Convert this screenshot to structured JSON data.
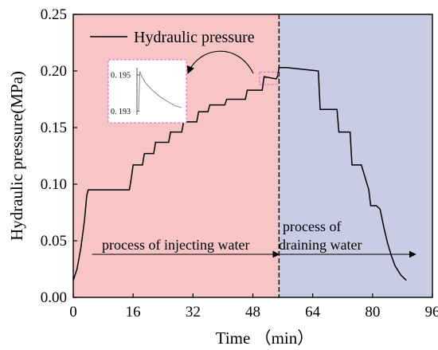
{
  "chart_data": {
    "type": "line",
    "xlabel": "Time （min）",
    "ylabel": "Hydraulic pressure(MPa)",
    "xlim": [
      0,
      96
    ],
    "ylim": [
      0,
      0.25
    ],
    "xticks": [
      0,
      16,
      32,
      48,
      64,
      80,
      96
    ],
    "yticks": [
      0.0,
      0.05,
      0.1,
      0.15,
      0.2,
      0.25
    ],
    "xtick_labels": [
      "0",
      "16",
      "32",
      "48",
      "64",
      "80",
      "96"
    ],
    "ytick_labels": [
      "0.00",
      "0.05",
      "0.10",
      "0.15",
      "0.20",
      "0.25"
    ],
    "divider_x": 55,
    "legend": {
      "label": "Hydraulic pressure",
      "position": "top-left"
    },
    "regions": [
      {
        "x": [
          0,
          55
        ],
        "color": "#f7c5c5"
      },
      {
        "x": [
          55,
          96
        ],
        "color": "#c8cde5"
      }
    ],
    "series": [
      {
        "name": "Hydraulic pressure",
        "color": "#000000",
        "x": [
          0,
          1,
          2,
          3,
          3.6,
          4,
          15,
          15.5,
          16,
          18.5,
          19,
          21.5,
          22,
          25.5,
          26,
          29,
          29.5,
          33,
          33.5,
          36,
          36.5,
          40.5,
          41,
          46,
          46.5,
          50.5,
          51,
          54.2,
          54.6,
          55,
          57,
          65.5,
          66,
          68,
          68.5,
          70.5,
          71,
          74,
          74.5,
          76.5,
          77,
          79,
          79.5,
          81,
          82,
          83,
          84,
          85,
          86,
          87.5,
          89
        ],
        "y": [
          0.015,
          0.025,
          0.043,
          0.068,
          0.09,
          0.095,
          0.095,
          0.105,
          0.117,
          0.117,
          0.127,
          0.127,
          0.137,
          0.137,
          0.146,
          0.146,
          0.155,
          0.155,
          0.164,
          0.164,
          0.17,
          0.17,
          0.175,
          0.175,
          0.183,
          0.183,
          0.195,
          0.193,
          0.195,
          0.203,
          0.203,
          0.2,
          0.166,
          0.166,
          0.166,
          0.166,
          0.146,
          0.146,
          0.117,
          0.117,
          0.117,
          0.095,
          0.081,
          0.081,
          0.078,
          0.062,
          0.048,
          0.037,
          0.028,
          0.02,
          0.015
        ]
      }
    ],
    "inset": {
      "yticks": [
        0.195,
        0.193
      ],
      "ytick_labels": [
        "0. 195",
        "0. 193"
      ],
      "curve_x": [
        0,
        0.03,
        0.08,
        0.15,
        0.3,
        0.5,
        0.7,
        0.85,
        1
      ],
      "curve_y": [
        0.193,
        0.1952,
        0.1949,
        0.1946,
        0.1942,
        0.1938,
        0.1935,
        0.1933,
        0.1932
      ]
    },
    "annotations": [
      {
        "text": "process of injecting water"
      },
      {
        "text": "process of"
      },
      {
        "text": "draining water"
      }
    ]
  }
}
